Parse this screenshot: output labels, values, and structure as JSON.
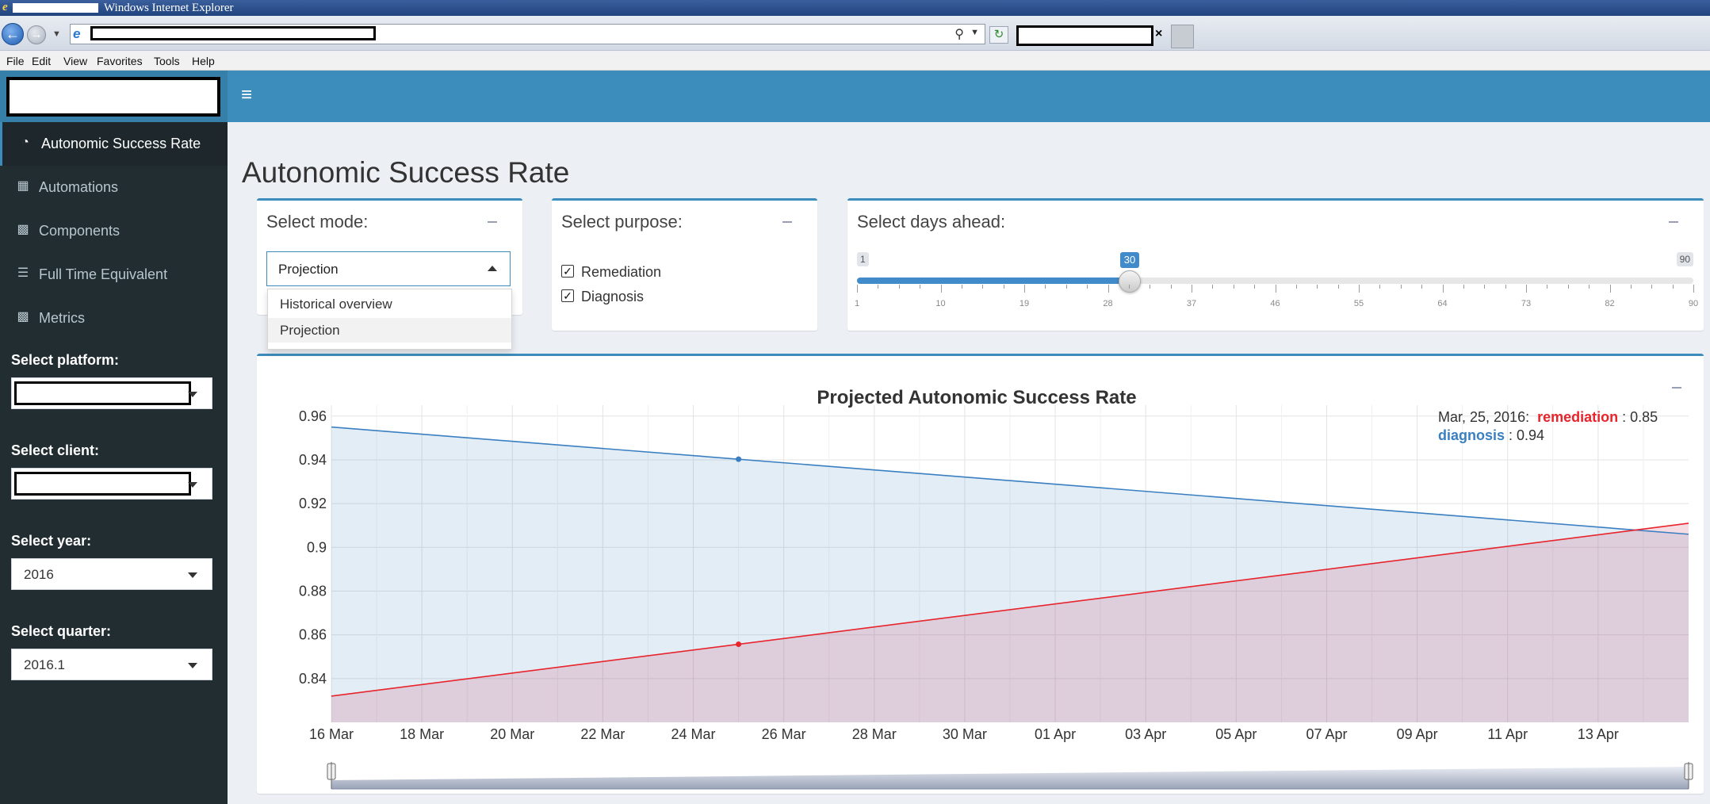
{
  "browser": {
    "title": "Windows Internet Explorer",
    "menu": [
      "File",
      "Edit",
      "View",
      "Favorites",
      "Tools",
      "Help"
    ]
  },
  "sidebar": {
    "items": [
      {
        "label": "Autonomic Success Rate",
        "icon": "dashboard-icon",
        "active": true
      },
      {
        "label": "Automations",
        "icon": "th-large-icon",
        "active": false
      },
      {
        "label": "Components",
        "icon": "th-icon",
        "active": false
      },
      {
        "label": "Full Time Equivalent",
        "icon": "tasks-icon",
        "active": false
      },
      {
        "label": "Metrics",
        "icon": "bar-chart-icon",
        "active": false
      }
    ],
    "filters": {
      "platform_label": "Select platform:",
      "client_label": "Select client:",
      "year_label": "Select year:",
      "year_value": "2016",
      "quarter_label": "Select quarter:",
      "quarter_value": "2016.1"
    }
  },
  "main": {
    "title": "Autonomic Success Rate",
    "mode": {
      "label": "Select mode:",
      "value": "Projection",
      "options": [
        "Historical overview",
        "Projection"
      ]
    },
    "purpose": {
      "label": "Select purpose:",
      "options": [
        {
          "label": "Remediation",
          "checked": true
        },
        {
          "label": "Diagnosis",
          "checked": true
        }
      ]
    },
    "days": {
      "label": "Select days ahead:",
      "min": 1,
      "max": 90,
      "value": 30,
      "min_label": "1",
      "max_label": "90",
      "value_label": "30",
      "ticks": [
        "1",
        "10",
        "19",
        "28",
        "37",
        "46",
        "55",
        "64",
        "73",
        "82",
        "90"
      ]
    }
  },
  "chart_data": {
    "type": "area",
    "title": "Projected Autonomic Success Rate",
    "x": [
      "2016-03-16",
      "2016-04-15"
    ],
    "xtick_labels": [
      "16 Mar",
      "18 Mar",
      "20 Mar",
      "22 Mar",
      "24 Mar",
      "26 Mar",
      "28 Mar",
      "30 Mar",
      "01 Apr",
      "03 Apr",
      "05 Apr",
      "07 Apr",
      "09 Apr",
      "11 Apr",
      "13 Apr"
    ],
    "ytick_labels": [
      "0.96",
      "0.94",
      "0.92",
      "0.9",
      "0.88",
      "0.86",
      "0.84"
    ],
    "ylim": [
      0.82,
      0.965
    ],
    "series": [
      {
        "name": "remediation",
        "values": [
          0.832,
          0.911
        ],
        "color": "#e8242c"
      },
      {
        "name": "diagnosis",
        "values": [
          0.955,
          0.906
        ],
        "color": "#3a7fc1"
      }
    ],
    "highlight_date": "2016-03-25",
    "tooltip": {
      "date": "Mar, 25, 2016:",
      "remediation_name": "remediation",
      "remediation_value": ": 0.85",
      "diagnosis_name": "diagnosis",
      "diagnosis_value": ": 0.94"
    },
    "grid": true,
    "range_selector": true
  }
}
